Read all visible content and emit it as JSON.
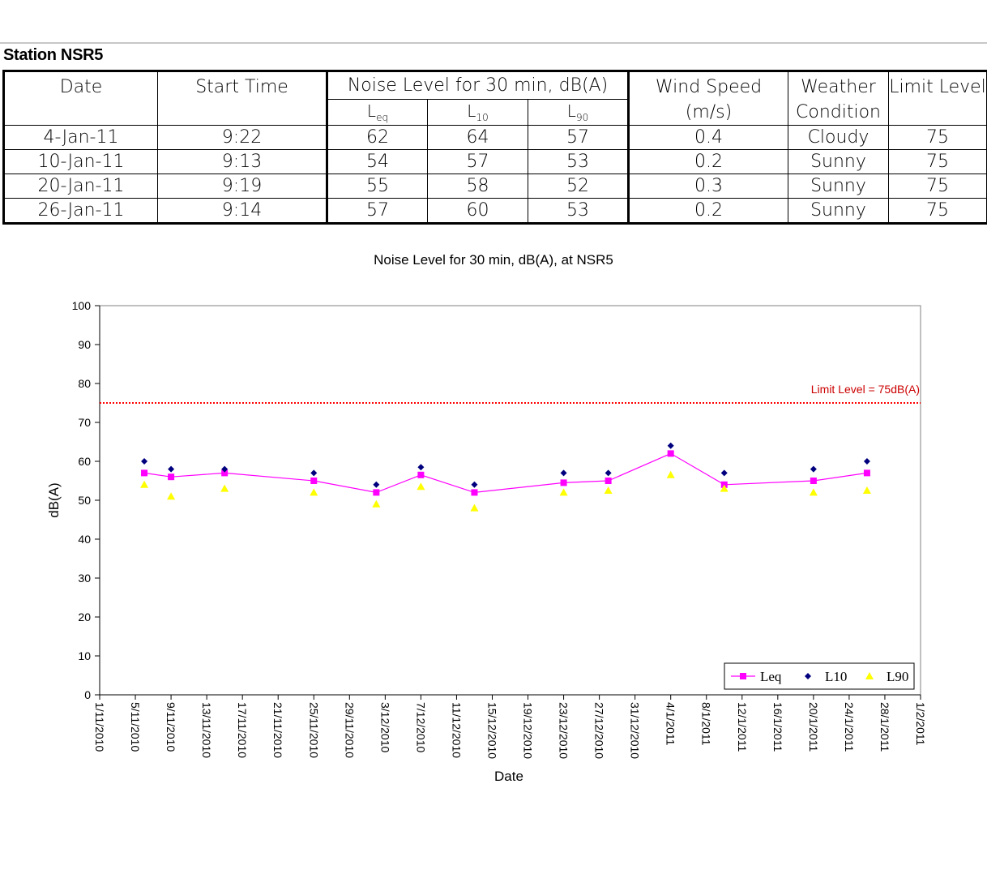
{
  "station": "Station NSR5",
  "table": {
    "headers": {
      "date": "Date",
      "start_time": "Start Time",
      "noise": "Noise Level for 30 min, dB(A)",
      "leq": "L",
      "leq_sub": "eq",
      "l10": "L",
      "l10_sub": "10",
      "l90": "L",
      "l90_sub": "90",
      "wind_1": "Wind Speed",
      "wind_2": "(m/s)",
      "weather_1": "Weather",
      "weather_2": "Condition",
      "limit": "Limit Level"
    },
    "rows": [
      {
        "date": "4-Jan-11",
        "time": "9:22",
        "leq": "62",
        "l10": "64",
        "l90": "57",
        "wind": "0.4",
        "weather": "Cloudy",
        "limit": "75"
      },
      {
        "date": "10-Jan-11",
        "time": "9:13",
        "leq": "54",
        "l10": "57",
        "l90": "53",
        "wind": "0.2",
        "weather": "Sunny",
        "limit": "75"
      },
      {
        "date": "20-Jan-11",
        "time": "9:19",
        "leq": "55",
        "l10": "58",
        "l90": "52",
        "wind": "0.3",
        "weather": "Sunny",
        "limit": "75"
      },
      {
        "date": "26-Jan-11",
        "time": "9:14",
        "leq": "57",
        "l10": "60",
        "l90": "53",
        "wind": "0.2",
        "weather": "Sunny",
        "limit": "75"
      }
    ]
  },
  "chart_data": {
    "type": "scatter",
    "title": "Noise Level for 30 min, dB(A), at NSR5",
    "xlabel": "Date",
    "ylabel": "dB(A)",
    "ylim": [
      0,
      100
    ],
    "yticks": [
      0,
      10,
      20,
      30,
      40,
      50,
      60,
      70,
      80,
      90,
      100
    ],
    "xlim": [
      "2010-11-01",
      "2011-02-01"
    ],
    "xticks": [
      "1/11/2010",
      "5/11/2010",
      "9/11/2010",
      "13/11/2010",
      "17/11/2010",
      "21/11/2010",
      "25/11/2010",
      "29/11/2010",
      "3/12/2010",
      "7/12/2010",
      "11/12/2010",
      "15/12/2010",
      "19/12/2010",
      "23/12/2010",
      "27/12/2010",
      "31/12/2010",
      "4/1/2011",
      "8/1/2011",
      "12/1/2011",
      "16/1/2011",
      "20/1/2011",
      "24/1/2011",
      "28/1/2011",
      "1/2/2011"
    ],
    "x": [
      "2010-11-06",
      "2010-11-09",
      "2010-11-15",
      "2010-11-25",
      "2010-12-02",
      "2010-12-07",
      "2010-12-13",
      "2010-12-23",
      "2010-12-28",
      "2011-01-04",
      "2011-01-10",
      "2011-01-20",
      "2011-01-26"
    ],
    "series": [
      {
        "name": "Leq",
        "color": "#ff00ff",
        "marker": "square",
        "line": true,
        "values": [
          57,
          56,
          57,
          55,
          52,
          56.5,
          52,
          54.5,
          55,
          62,
          54,
          55,
          57
        ]
      },
      {
        "name": "L10",
        "color": "#00007f",
        "marker": "diamond",
        "line": false,
        "values": [
          60,
          58,
          58,
          57,
          54,
          58.5,
          54,
          57,
          57,
          64,
          57,
          58,
          60
        ]
      },
      {
        "name": "L90",
        "color": "#ffff00",
        "marker": "triangle",
        "line": false,
        "values": [
          54,
          51,
          53,
          52,
          49,
          53.5,
          48,
          52,
          52.5,
          56.5,
          53,
          52,
          52.5
        ]
      }
    ],
    "limit": {
      "value": 75,
      "label": "Limit Level = 75dB(A)",
      "color": "#ff0000"
    },
    "grid": false,
    "legend": "bottom-right"
  }
}
